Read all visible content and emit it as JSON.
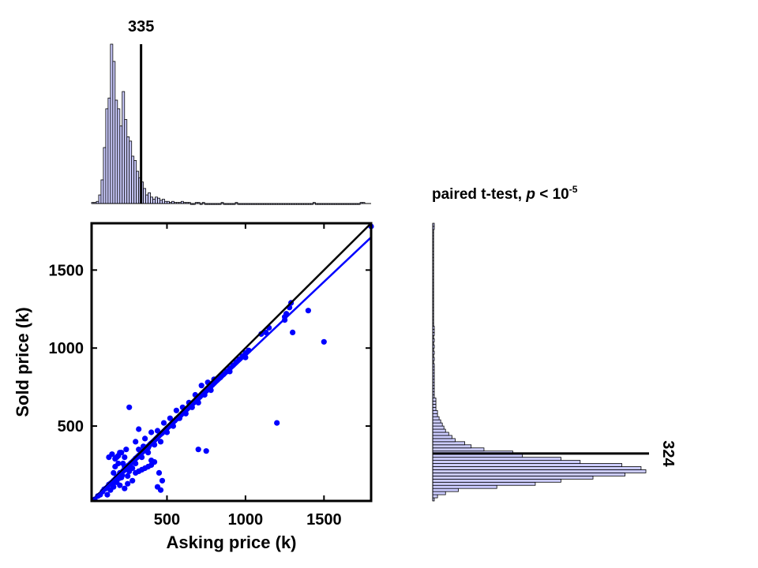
{
  "chart_data": [
    {
      "type": "scatter",
      "xlabel": "Asking price (k)",
      "ylabel": "Sold price (k)",
      "xlim": [
        20,
        1800
      ],
      "ylim": [
        20,
        1800
      ],
      "xticks": [
        500,
        1000,
        1500
      ],
      "yticks": [
        500,
        1000,
        1500
      ],
      "xtick_labels": [
        "500",
        "1000",
        "1500"
      ],
      "ytick_labels": [
        "500",
        "1000",
        "1500"
      ],
      "marker_color": "#0000ff",
      "grid": false,
      "points": [
        [
          40,
          30
        ],
        [
          60,
          52
        ],
        [
          75,
          60
        ],
        [
          90,
          80
        ],
        [
          100,
          95
        ],
        [
          110,
          100
        ],
        [
          120,
          108
        ],
        [
          130,
          125
        ],
        [
          140,
          132
        ],
        [
          150,
          140
        ],
        [
          155,
          120
        ],
        [
          160,
          150
        ],
        [
          170,
          160
        ],
        [
          175,
          145
        ],
        [
          180,
          175
        ],
        [
          185,
          170
        ],
        [
          190,
          180
        ],
        [
          195,
          165
        ],
        [
          200,
          190
        ],
        [
          205,
          195
        ],
        [
          210,
          200
        ],
        [
          215,
          185
        ],
        [
          220,
          212
        ],
        [
          225,
          215
        ],
        [
          230,
          220
        ],
        [
          235,
          225
        ],
        [
          240,
          230
        ],
        [
          245,
          232
        ],
        [
          250,
          240
        ],
        [
          255,
          248
        ],
        [
          260,
          250
        ],
        [
          265,
          255
        ],
        [
          270,
          262
        ],
        [
          275,
          265
        ],
        [
          280,
          270
        ],
        [
          285,
          275
        ],
        [
          290,
          280
        ],
        [
          295,
          285
        ],
        [
          300,
          292
        ],
        [
          305,
          296
        ],
        [
          310,
          300
        ],
        [
          315,
          305
        ],
        [
          320,
          310
        ],
        [
          325,
          315
        ],
        [
          330,
          320
        ],
        [
          335,
          325
        ],
        [
          340,
          330
        ],
        [
          345,
          335
        ],
        [
          350,
          340
        ],
        [
          355,
          345
        ],
        [
          360,
          350
        ],
        [
          365,
          352
        ],
        [
          370,
          360
        ],
        [
          375,
          365
        ],
        [
          380,
          370
        ],
        [
          385,
          372
        ],
        [
          390,
          380
        ],
        [
          395,
          385
        ],
        [
          400,
          390
        ],
        [
          410,
          398
        ],
        [
          420,
          408
        ],
        [
          430,
          418
        ],
        [
          440,
          428
        ],
        [
          450,
          438
        ],
        [
          460,
          448
        ],
        [
          470,
          456
        ],
        [
          480,
          466
        ],
        [
          490,
          476
        ],
        [
          500,
          486
        ],
        [
          510,
          496
        ],
        [
          520,
          505
        ],
        [
          530,
          515
        ],
        [
          540,
          525
        ],
        [
          550,
          535
        ],
        [
          560,
          545
        ],
        [
          570,
          553
        ],
        [
          580,
          562
        ],
        [
          590,
          572
        ],
        [
          600,
          582
        ],
        [
          610,
          592
        ],
        [
          620,
          600
        ],
        [
          630,
          612
        ],
        [
          640,
          620
        ],
        [
          650,
          630
        ],
        [
          660,
          640
        ],
        [
          670,
          650
        ],
        [
          680,
          660
        ],
        [
          690,
          668
        ],
        [
          700,
          678
        ],
        [
          710,
          688
        ],
        [
          720,
          698
        ],
        [
          730,
          706
        ],
        [
          740,
          716
        ],
        [
          750,
          726
        ],
        [
          760,
          736
        ],
        [
          770,
          745
        ],
        [
          780,
          755
        ],
        [
          790,
          765
        ],
        [
          800,
          775
        ],
        [
          820,
          795
        ],
        [
          840,
          812
        ],
        [
          860,
          832
        ],
        [
          880,
          850
        ],
        [
          900,
          870
        ],
        [
          920,
          890
        ],
        [
          940,
          910
        ],
        [
          960,
          928
        ],
        [
          980,
          948
        ],
        [
          1000,
          968
        ],
        [
          1020,
          985
        ],
        [
          130,
          300
        ],
        [
          150,
          320
        ],
        [
          160,
          200
        ],
        [
          170,
          240
        ],
        [
          180,
          300
        ],
        [
          190,
          260
        ],
        [
          200,
          330
        ],
        [
          210,
          170
        ],
        [
          220,
          260
        ],
        [
          230,
          300
        ],
        [
          240,
          350
        ],
        [
          250,
          180
        ],
        [
          260,
          210
        ],
        [
          280,
          230
        ],
        [
          300,
          260
        ],
        [
          320,
          350
        ],
        [
          340,
          300
        ],
        [
          360,
          420
        ],
        [
          380,
          330
        ],
        [
          400,
          460
        ],
        [
          420,
          380
        ],
        [
          440,
          470
        ],
        [
          460,
          400
        ],
        [
          480,
          520
        ],
        [
          500,
          460
        ],
        [
          520,
          550
        ],
        [
          540,
          500
        ],
        [
          560,
          600
        ],
        [
          580,
          550
        ],
        [
          600,
          620
        ],
        [
          620,
          580
        ],
        [
          640,
          650
        ],
        [
          660,
          620
        ],
        [
          680,
          700
        ],
        [
          700,
          650
        ],
        [
          720,
          760
        ],
        [
          740,
          700
        ],
        [
          760,
          780
        ],
        [
          780,
          730
        ],
        [
          800,
          800
        ],
        [
          260,
          620
        ],
        [
          320,
          480
        ],
        [
          300,
          400
        ],
        [
          350,
          370
        ],
        [
          380,
          360
        ],
        [
          400,
          280
        ],
        [
          420,
          270
        ],
        [
          400,
          250
        ],
        [
          450,
          200
        ],
        [
          470,
          150
        ],
        [
          440,
          110
        ],
        [
          460,
          90
        ],
        [
          380,
          240
        ],
        [
          360,
          230
        ],
        [
          340,
          220
        ],
        [
          320,
          210
        ],
        [
          300,
          200
        ],
        [
          280,
          150
        ],
        [
          250,
          130
        ],
        [
          230,
          100
        ],
        [
          200,
          120
        ],
        [
          180,
          140
        ],
        [
          170,
          290
        ],
        [
          190,
          310
        ],
        [
          210,
          330
        ],
        [
          230,
          240
        ],
        [
          200,
          200
        ],
        [
          160,
          110
        ],
        [
          140,
          90
        ],
        [
          120,
          60
        ],
        [
          700,
          350
        ],
        [
          750,
          340
        ],
        [
          850,
          830
        ],
        [
          900,
          850
        ],
        [
          1000,
          940
        ],
        [
          1100,
          1090
        ],
        [
          1130,
          1100
        ],
        [
          1150,
          1130
        ],
        [
          1200,
          520
        ],
        [
          1250,
          1180
        ],
        [
          1250,
          1200
        ],
        [
          1260,
          1220
        ],
        [
          1280,
          1260
        ],
        [
          1290,
          1290
        ],
        [
          1400,
          1240
        ],
        [
          1500,
          1040
        ],
        [
          1800,
          1780
        ],
        [
          1300,
          1100
        ]
      ],
      "fit_line": {
        "x": [
          20,
          1800
        ],
        "y": [
          18,
          1710
        ]
      },
      "identity_line": {
        "x": [
          20,
          1800
        ],
        "y": [
          20,
          1800
        ]
      }
    },
    {
      "type": "bar",
      "orientation": "vertical",
      "variable": "Asking price (k)",
      "bin_width": 15,
      "bin_start": 20,
      "xlim": [
        20,
        1800
      ],
      "counts": [
        1,
        1,
        2,
        8,
        22,
        52,
        88,
        98,
        148,
        132,
        96,
        88,
        72,
        104,
        78,
        62,
        58,
        44,
        40,
        30,
        24,
        20,
        14,
        8,
        10,
        6,
        4,
        6,
        5,
        3,
        4,
        2,
        2,
        1,
        2,
        1,
        1,
        1,
        2,
        1,
        1,
        1,
        0,
        0,
        1,
        1,
        0,
        1,
        0,
        0,
        0,
        0,
        0,
        0,
        0,
        1,
        0,
        0,
        0,
        0,
        0,
        1,
        0,
        0,
        0,
        0,
        0,
        0,
        0,
        0,
        0,
        0,
        0,
        0,
        0,
        0,
        0,
        0,
        0,
        0,
        0,
        0,
        0,
        0,
        0,
        0,
        0,
        0,
        0,
        0,
        0,
        0,
        0,
        0,
        1,
        0,
        0,
        0,
        0,
        0,
        0,
        0,
        0,
        0,
        0,
        0,
        0,
        0,
        0,
        0,
        0,
        0,
        0,
        0,
        1,
        1
      ],
      "bar_color": "#ccccff",
      "median_value": 335,
      "median_label": "335"
    },
    {
      "type": "bar",
      "orientation": "horizontal",
      "variable": "Sold price (k)",
      "bin_width": 20,
      "bin_start": 20,
      "ylim": [
        20,
        1800
      ],
      "counts": [
        1,
        3,
        8,
        16,
        40,
        64,
        80,
        100,
        120,
        133,
        130,
        118,
        92,
        80,
        56,
        50,
        32,
        24,
        20,
        14,
        12,
        10,
        8,
        7,
        6,
        5,
        4,
        3,
        3,
        2,
        2,
        2,
        2,
        1,
        1,
        1,
        1,
        1,
        1,
        1,
        1,
        1,
        1,
        1,
        0,
        1,
        0,
        1,
        0,
        1,
        0,
        1,
        0,
        1,
        1,
        1,
        0,
        0,
        0,
        0,
        0,
        0,
        0,
        0,
        0,
        0,
        0,
        0,
        0,
        0,
        0,
        0,
        0,
        0,
        0,
        0,
        0,
        0,
        0,
        0,
        0,
        0,
        0,
        0,
        0,
        0,
        0,
        1,
        1
      ],
      "bar_color": "#ccccff",
      "median_value": 324,
      "median_label": "324"
    }
  ],
  "title": {
    "prefix": "paired t-test, ",
    "p": "p",
    "middle": " < 10",
    "exponent": "-5"
  }
}
